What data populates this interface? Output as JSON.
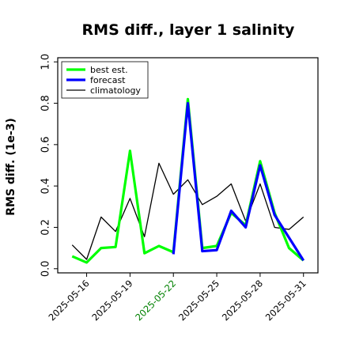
{
  "chart_data": {
    "type": "line",
    "title": "RMS diff., layer 1 salinity",
    "xlabel": "",
    "ylabel": "RMS diff. (1e-3)",
    "ylim": [
      -0.02,
      1.02
    ],
    "yticks": [
      0.0,
      0.2,
      0.4,
      0.6,
      0.8,
      1.0
    ],
    "ytick_labels": [
      "0.0",
      "0.2",
      "0.4",
      "0.6",
      "0.8",
      "1.0"
    ],
    "grid": false,
    "legend_position": "upper-left",
    "x": [
      "2025-05-15",
      "2025-05-16",
      "2025-05-17",
      "2025-05-18",
      "2025-05-19",
      "2025-05-20",
      "2025-05-21",
      "2025-05-22",
      "2025-05-23",
      "2025-05-24",
      "2025-05-25",
      "2025-05-26",
      "2025-05-27",
      "2025-05-28",
      "2025-05-29",
      "2025-05-30",
      "2025-05-31"
    ],
    "xlim": [
      "2025-05-14",
      "2025-06-01"
    ],
    "xticks": [
      "2025-05-16",
      "2025-05-19",
      "2025-05-22",
      "2025-05-25",
      "2025-05-28",
      "2025-05-31"
    ],
    "highlight_tick": {
      "label": "2025-05-22",
      "color": "#008000"
    },
    "series": [
      {
        "name": "best est.",
        "color": "#00ff00",
        "values": [
          0.06,
          0.03,
          0.1,
          0.105,
          0.57,
          0.075,
          0.11,
          0.08,
          0.82,
          0.1,
          0.11,
          0.27,
          0.21,
          0.52,
          0.27,
          0.1,
          0.04
        ]
      },
      {
        "name": "forecast",
        "color": "#0000ff",
        "values": [
          null,
          null,
          null,
          null,
          null,
          null,
          null,
          0.07,
          0.8,
          0.085,
          0.09,
          0.28,
          0.2,
          0.5,
          0.26,
          0.15,
          0.04
        ]
      },
      {
        "name": "climatology",
        "color": "#000000",
        "values": [
          0.115,
          0.045,
          0.25,
          0.18,
          0.34,
          0.155,
          0.51,
          0.36,
          0.43,
          0.31,
          0.35,
          0.41,
          0.23,
          0.41,
          0.2,
          0.19,
          0.25
        ]
      }
    ]
  }
}
